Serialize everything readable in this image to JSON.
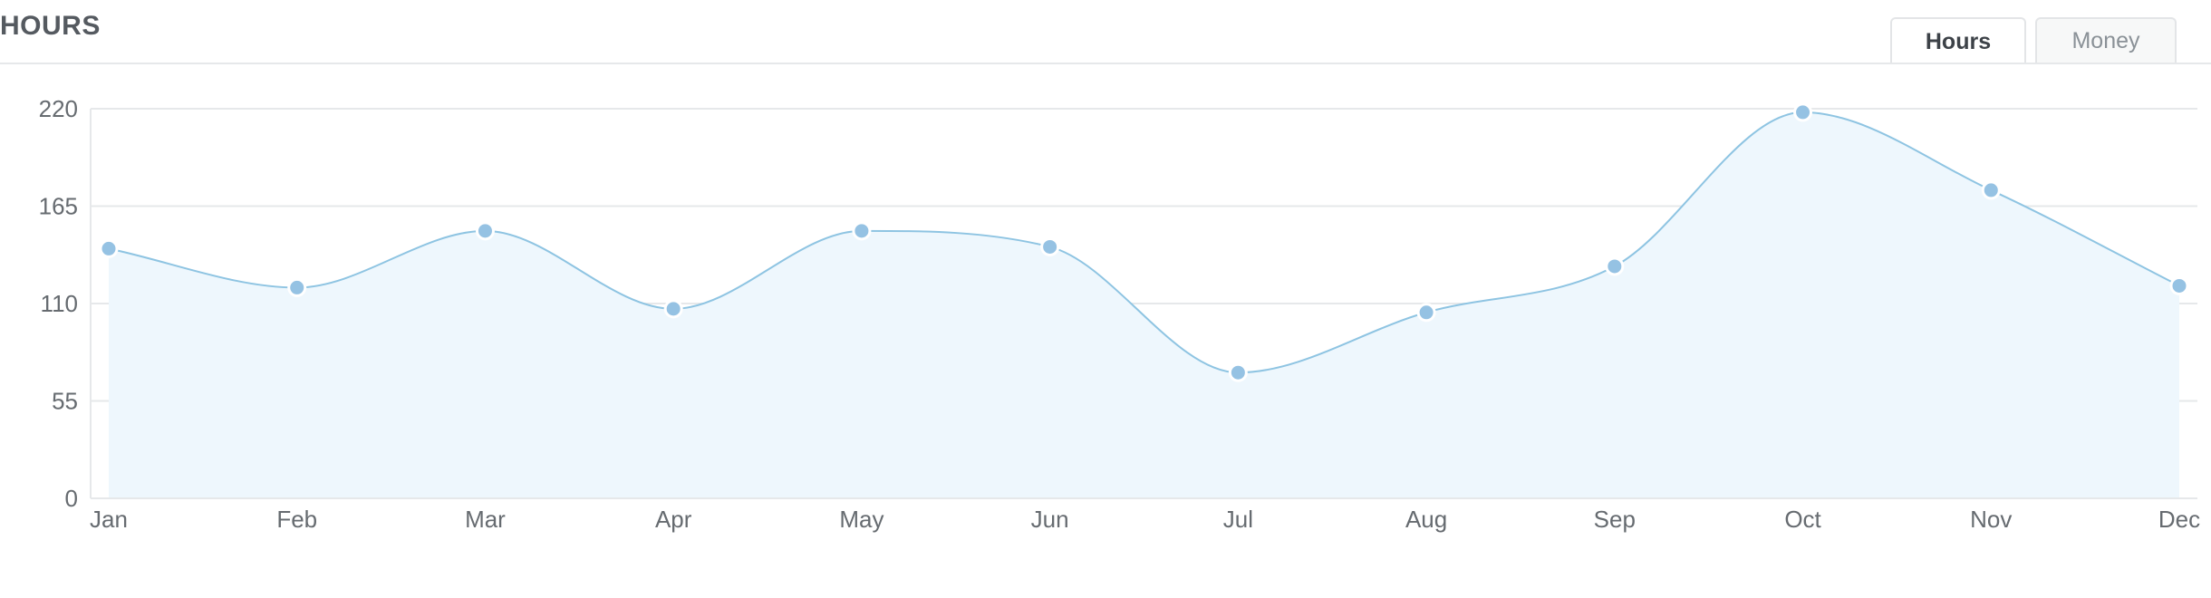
{
  "title": "HOURS",
  "tabs": [
    {
      "label": "Hours",
      "active": true
    },
    {
      "label": "Money",
      "active": false
    }
  ],
  "colors": {
    "line": "#8ec4e2",
    "fill": "#eef7fd",
    "point": "#95c2e3",
    "grid": "#e6e8ea",
    "text": "#666b70"
  },
  "chart_data": {
    "type": "area",
    "title": "",
    "xlabel": "",
    "ylabel": "",
    "categories": [
      "Jan",
      "Feb",
      "Mar",
      "Apr",
      "May",
      "Jun",
      "Jul",
      "Aug",
      "Sep",
      "Oct",
      "Nov",
      "Dec"
    ],
    "series": [
      {
        "values": [
          141,
          119,
          151,
          107,
          151,
          142,
          71,
          105,
          131,
          218,
          174,
          120
        ]
      }
    ],
    "yticks": [
      0,
      55,
      110,
      165,
      220
    ],
    "ylim": [
      0,
      220
    ],
    "grid": true,
    "legend": "none"
  }
}
